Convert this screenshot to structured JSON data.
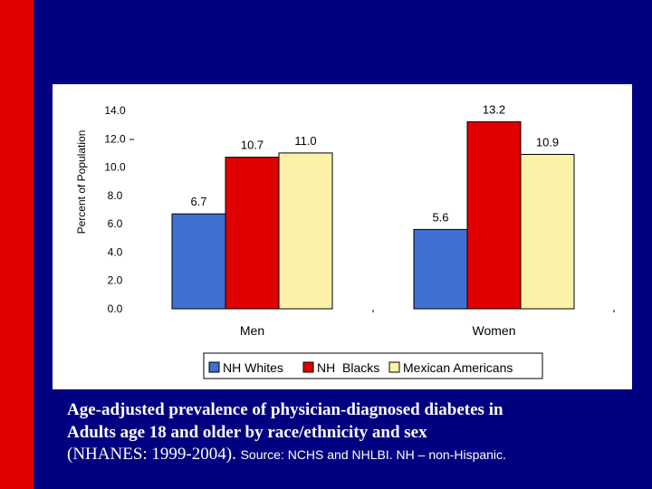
{
  "slide": {
    "caption_line1": "Age-adjusted prevalence of physician-diagnosed diabetes in",
    "caption_line2": "Adults age 18 and older by race/ethnicity and sex",
    "caption_line3": "(NHANES: 1999-2004).",
    "source_note": "Source: NCHS and NHLBI.  NH – non-Hispanic.",
    "colors": {
      "background": "#000080",
      "accent_bar": "#e00000",
      "caption_text": "#ffffff"
    }
  },
  "chart_data": {
    "type": "bar",
    "title": "",
    "xlabel": "",
    "ylabel": "Percent of Population",
    "ylim": [
      0,
      14
    ],
    "yticks": [
      "0.0",
      "2.0",
      "4.0",
      "6.0",
      "8.0",
      "10.0",
      "12.0",
      "14.0"
    ],
    "categories": [
      "Men",
      "Women"
    ],
    "series": [
      {
        "name": "NH Whites",
        "color": "#3f6fd1",
        "values": [
          6.7,
          5.6
        ],
        "labels": [
          "6.7",
          "5.6"
        ]
      },
      {
        "name": "NH  Blacks",
        "color": "#e00000",
        "values": [
          10.7,
          13.2
        ],
        "labels": [
          "10.7",
          "13.2"
        ]
      },
      {
        "name": "Mexican Americans",
        "color": "#fbf2a8",
        "values": [
          11.0,
          10.9
        ],
        "labels": [
          "11.0",
          "10.9"
        ]
      }
    ],
    "legend_position": "bottom",
    "grid": false
  }
}
